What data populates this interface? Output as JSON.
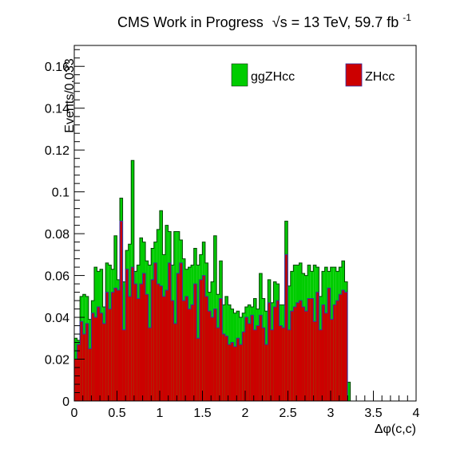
{
  "chart_data": {
    "type": "bar",
    "stacked": true,
    "title_main": "CMS Work in Progress",
    "title_energy": "√s = 13 TeV, 59.7 fb",
    "title_sup": "-1",
    "xlabel": "Δφ(c,c)",
    "ylabel": "Events/0.033",
    "xlim": [
      0,
      4
    ],
    "ylim": [
      0,
      0.17
    ],
    "bin_width": 0.0333,
    "x_ticks": [
      "0",
      "0.5",
      "1",
      "1.5",
      "2",
      "2.5",
      "3",
      "3.5",
      "4"
    ],
    "y_ticks": [
      "0",
      "0.02",
      "0.04",
      "0.06",
      "0.08",
      "0.1",
      "0.12",
      "0.14",
      "0.16"
    ],
    "legend": [
      {
        "label": "ggZHcc",
        "color": "#00cc00"
      },
      {
        "label": "ZHcc",
        "color": "#cc0000"
      }
    ],
    "series": [
      {
        "name": "ZHcc",
        "color": "#cc0000",
        "values": [
          0.02,
          0.027,
          0.038,
          0.032,
          0.037,
          0.025,
          0.042,
          0.04,
          0.045,
          0.042,
          0.037,
          0.052,
          0.044,
          0.052,
          0.054,
          0.053,
          0.086,
          0.034,
          0.063,
          0.05,
          0.064,
          0.056,
          0.049,
          0.056,
          0.061,
          0.051,
          0.035,
          0.058,
          0.066,
          0.056,
          0.055,
          0.05,
          0.053,
          0.066,
          0.048,
          0.037,
          0.061,
          0.066,
          0.048,
          0.05,
          0.044,
          0.046,
          0.056,
          0.03,
          0.058,
          0.06,
          0.05,
          0.043,
          0.04,
          0.044,
          0.035,
          0.049,
          0.032,
          0.031,
          0.027,
          0.028,
          0.026,
          0.03,
          0.027,
          0.033,
          0.04,
          0.037,
          0.041,
          0.034,
          0.036,
          0.041,
          0.035,
          0.027,
          0.047,
          0.034,
          0.045,
          0.048,
          0.036,
          0.035,
          0.07,
          0.034,
          0.043,
          0.045,
          0.047,
          0.048,
          0.045,
          0.043,
          0.049,
          0.049,
          0.038,
          0.052,
          0.034,
          0.046,
          0.042,
          0.054,
          0.039,
          0.046,
          0.048,
          0.051,
          0.053,
          0.052,
          0.0
        ]
      },
      {
        "name": "ggZHcc",
        "color": "#00cc00",
        "values": [
          0.01,
          0.002,
          0.012,
          0.019,
          0.013,
          0.014,
          0.006,
          0.024,
          0.017,
          0.021,
          0.008,
          0.014,
          0.021,
          0.011,
          0.025,
          0.005,
          0.011,
          0.023,
          0.009,
          0.025,
          0.051,
          0.006,
          0.016,
          0.022,
          0.015,
          0.016,
          0.03,
          0.015,
          0.01,
          0.026,
          0.036,
          0.02,
          0.031,
          0.015,
          0.017,
          0.044,
          0.02,
          0.011,
          0.02,
          0.013,
          0.02,
          0.019,
          0.017,
          0.035,
          0.012,
          0.016,
          0.016,
          0.009,
          0.017,
          0.035,
          0.016,
          0.018,
          0.014,
          0.019,
          0.019,
          0.016,
          0.016,
          0.013,
          0.013,
          0.009,
          0.005,
          0.009,
          0.004,
          0.015,
          0.008,
          0.02,
          0.014,
          0.016,
          0.011,
          0.013,
          0.012,
          0.008,
          0.01,
          0.011,
          0.016,
          0.021,
          0.019,
          0.02,
          0.018,
          0.018,
          0.016,
          0.017,
          0.016,
          0.013,
          0.027,
          0.012,
          0.016,
          0.016,
          0.022,
          0.008,
          0.025,
          0.018,
          0.014,
          0.013,
          0.014,
          0.005,
          0.009
        ]
      }
    ]
  }
}
